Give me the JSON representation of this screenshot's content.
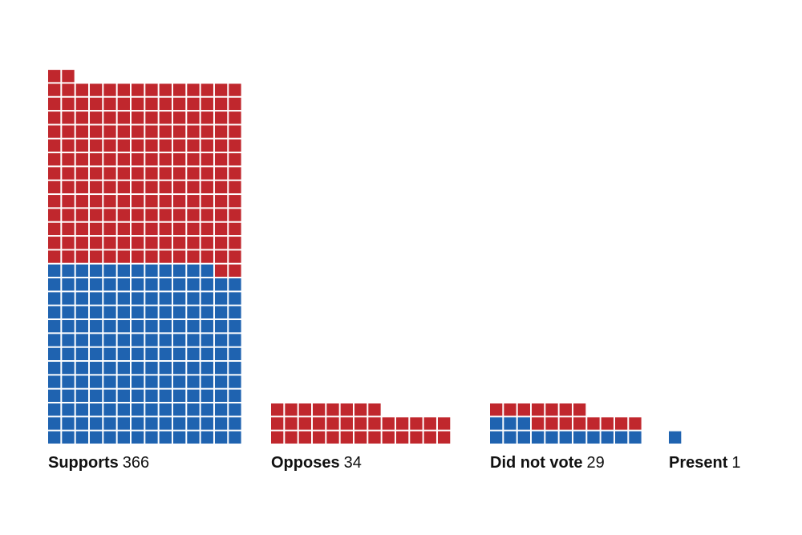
{
  "chart_data": {
    "type": "waffle",
    "title": "",
    "unit_per_square": 1,
    "colors": {
      "red": "#c0272d",
      "blue": "#1f63b0"
    },
    "groups": [
      {
        "name": "Supports",
        "count_label": "366",
        "total": 366,
        "blue": 180,
        "red": 186
      },
      {
        "name": "Opposes",
        "count_label": "34",
        "total": 34,
        "blue": 0,
        "red": 34
      },
      {
        "name": "Did not vote",
        "count_label": "29",
        "total": 29,
        "blue": 14,
        "red": 15
      },
      {
        "name": "Present",
        "count_label": "1",
        "total": 1,
        "blue": 1,
        "red": 0
      }
    ]
  }
}
